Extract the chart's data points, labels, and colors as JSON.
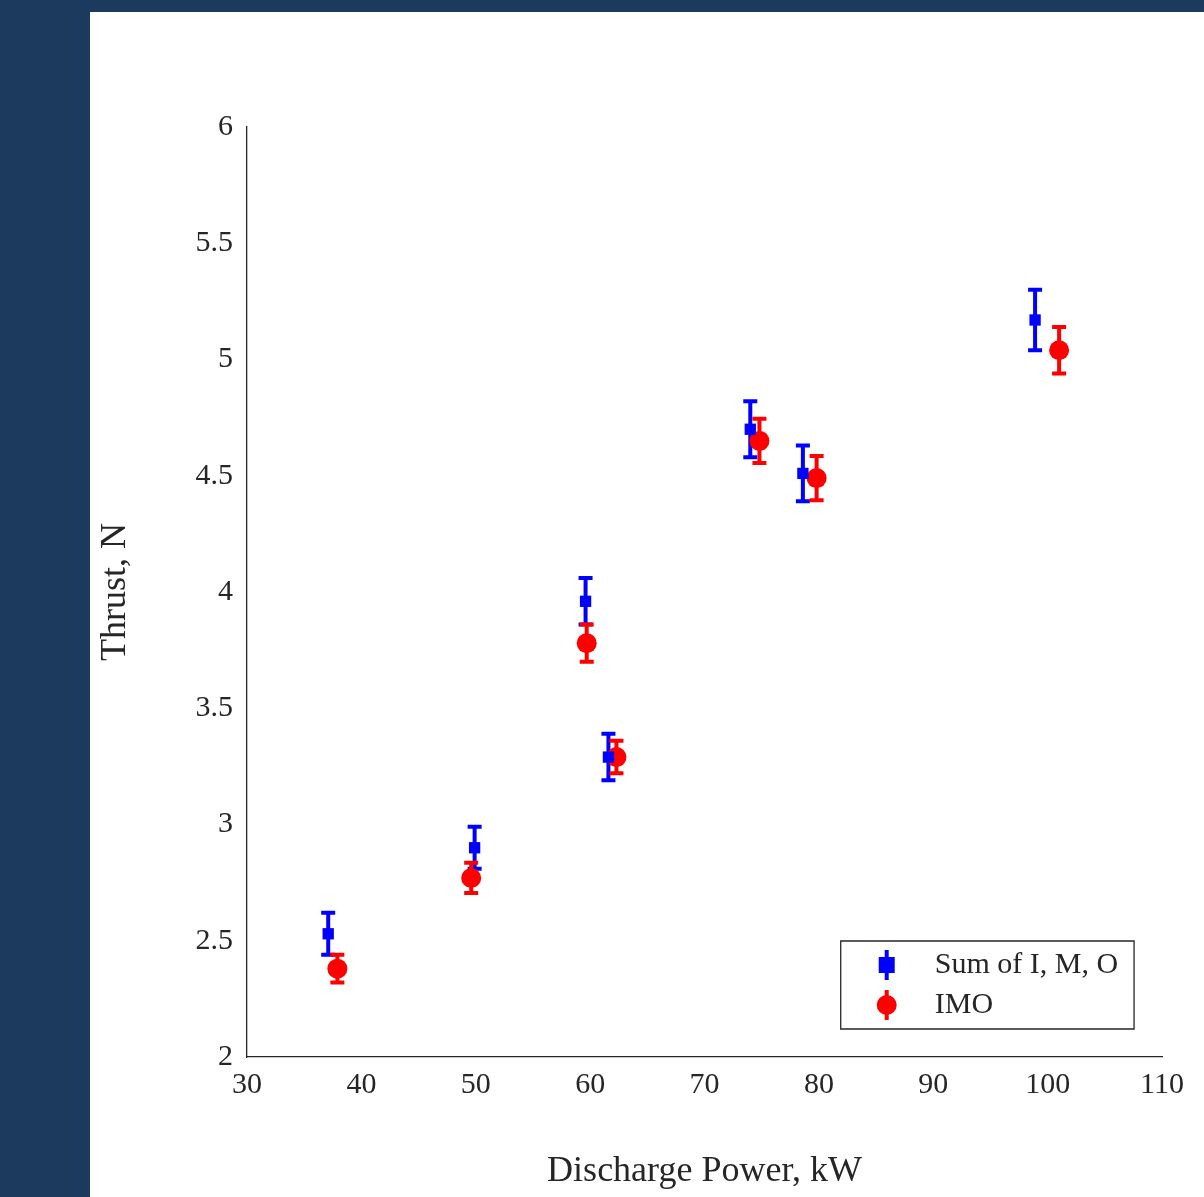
{
  "chart_data": {
    "type": "scatter",
    "xlabel": "Discharge Power, kW",
    "ylabel": "Thrust, N",
    "xlim": [
      30,
      110
    ],
    "xticks": [
      30,
      40,
      50,
      60,
      70,
      80,
      90,
      100,
      110
    ],
    "ylim": [
      2,
      6
    ],
    "yticks": [
      2,
      2.5,
      3,
      3.5,
      4,
      4.5,
      5,
      5.5,
      6
    ],
    "grid": false,
    "legend": "bottom right",
    "series": [
      {
        "name": "Sum of I, M, O",
        "color": "#0000ff",
        "marker": "square",
        "x": [
          37.1,
          49.9,
          59.6,
          61.6,
          74.0,
          78.6,
          98.9
        ],
        "values": [
          2.53,
          2.9,
          3.96,
          3.29,
          4.7,
          4.51,
          5.17
        ],
        "errors": [
          0.09,
          0.09,
          0.1,
          0.1,
          0.12,
          0.12,
          0.13
        ]
      },
      {
        "name": "IMO",
        "color": "#ff0000",
        "marker": "circle",
        "x": [
          37.9,
          49.6,
          59.7,
          62.3,
          74.8,
          79.8,
          101.0
        ],
        "values": [
          2.38,
          2.77,
          3.78,
          3.29,
          4.65,
          4.49,
          5.04
        ],
        "errors": [
          0.06,
          0.065,
          0.08,
          0.07,
          0.095,
          0.095,
          0.1
        ]
      }
    ]
  }
}
